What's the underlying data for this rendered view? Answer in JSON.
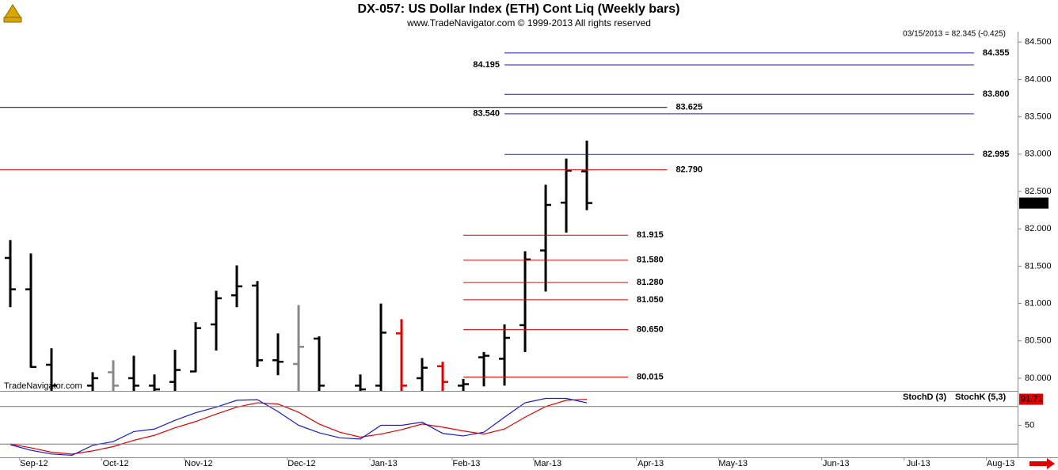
{
  "title": "DX-057:  US Dollar Index (ETH) Cont Liq  (Weekly bars)",
  "subtitle": "www.TradeNavigator.com © 1999-2013 All rights reserved",
  "last_quote": "03/15/2013 = 82.345 (-0.425)",
  "watermark": "TradeNavigator.com",
  "chart_data": [
    {
      "type": "ohlc",
      "x": [
        0,
        1,
        2,
        3,
        4,
        5,
        6,
        7,
        8,
        9,
        10,
        11,
        12,
        13,
        14,
        15,
        16,
        17,
        18,
        19,
        20,
        21,
        22,
        23,
        24,
        25,
        26,
        27,
        28
      ],
      "open": [
        81.61,
        81.19,
        80.18,
        null,
        79.9,
        80.08,
        80.0,
        79.9,
        79.95,
        80.09,
        80.72,
        81.11,
        81.24,
        80.24,
        80.19,
        80.53,
        null,
        79.9,
        79.9,
        80.6,
        80.0,
        80.16,
        79.9,
        80.28,
        80.26,
        80.71,
        81.71,
        82.35,
        82.77
      ],
      "high": [
        81.85,
        81.67,
        80.4,
        null,
        80.08,
        80.24,
        80.3,
        80.05,
        80.38,
        80.75,
        81.17,
        81.51,
        81.3,
        80.6,
        80.98,
        80.56,
        null,
        80.05,
        81.0,
        80.79,
        80.27,
        80.22,
        79.99,
        80.35,
        80.72,
        81.7,
        82.59,
        82.94,
        83.18
      ],
      "low": [
        80.95,
        80.14,
        79.75,
        null,
        79.7,
        79.7,
        79.7,
        79.7,
        79.8,
        80.08,
        80.37,
        80.95,
        80.15,
        80.04,
        79.7,
        79.7,
        null,
        79.7,
        79.7,
        79.7,
        79.8,
        79.7,
        79.7,
        79.89,
        79.9,
        80.35,
        81.16,
        81.95,
        82.25
      ],
      "close": [
        81.19,
        80.15,
        79.9,
        null,
        80.0,
        79.9,
        79.9,
        79.85,
        80.11,
        80.67,
        81.07,
        81.23,
        80.24,
        80.22,
        80.42,
        79.9,
        null,
        79.85,
        80.61,
        79.9,
        80.14,
        79.95,
        79.92,
        80.3,
        80.54,
        81.59,
        82.32,
        82.78,
        82.345
      ],
      "colors": [
        "#000",
        "#000",
        "#000",
        "#000",
        "#000",
        "#888",
        "#000",
        "#000",
        "#000",
        "#000",
        "#000",
        "#000",
        "#000",
        "#000",
        "#888",
        "#000",
        "#000",
        "#000",
        "#000",
        "#e00000",
        "#000",
        "#e00000",
        "#000",
        "#000",
        "#000",
        "#000",
        "#000",
        "#000",
        "#000"
      ],
      "xlim": [
        -0.5,
        48.92
      ],
      "ylim": [
        79.83,
        84.64
      ],
      "xticks": [
        {
          "value": 1.15,
          "label": "Sep-12"
        },
        {
          "value": 5.12,
          "label": "Oct-12"
        },
        {
          "value": 9.15,
          "label": "Nov-12"
        },
        {
          "value": 14.15,
          "label": "Dec-12"
        },
        {
          "value": 18.15,
          "label": "Jan-13"
        },
        {
          "value": 22.15,
          "label": "Feb-13"
        },
        {
          "value": 26.1,
          "label": "Mar-13"
        },
        {
          "value": 31.1,
          "label": "Apr-13"
        },
        {
          "value": 35.1,
          "label": "May-13"
        },
        {
          "value": 40.1,
          "label": "Jun-13"
        },
        {
          "value": 44.1,
          "label": "Jul-13"
        },
        {
          "value": 48.1,
          "label": "Aug-13"
        }
      ],
      "yticks": [
        {
          "value": 80,
          "label": "80.000"
        },
        {
          "value": 80.5,
          "label": "80.500"
        },
        {
          "value": 81,
          "label": "81.000"
        },
        {
          "value": 81.5,
          "label": "81.500"
        },
        {
          "value": 82,
          "label": "82.000"
        },
        {
          "value": 82.5,
          "label": "82.500"
        },
        {
          "value": 83,
          "label": "83.000"
        },
        {
          "value": 83.5,
          "label": "83.500"
        },
        {
          "value": 84,
          "label": "84.000"
        },
        {
          "value": 84.5,
          "label": "84.500"
        }
      ],
      "levels": [
        {
          "value": 83.625,
          "label": "83.625",
          "color": "#000000",
          "from": -0.5,
          "to": 31.9,
          "label_side": "right"
        },
        {
          "value": 82.79,
          "label": "82.790",
          "color": "#e00000",
          "from": -0.5,
          "to": 31.9,
          "label_side": "right"
        },
        {
          "value": 84.355,
          "label": "84.355",
          "color": "#1a1acc",
          "from": 24,
          "to": 46.8,
          "label_side": "right"
        },
        {
          "value": 84.195,
          "label": "84.195",
          "color": "#1a1acc",
          "from": 24,
          "to": 46.8,
          "label_side": "left"
        },
        {
          "value": 83.8,
          "label": "83.800",
          "color": "#1a1acc",
          "from": 24,
          "to": 46.8,
          "label_side": "right"
        },
        {
          "value": 83.54,
          "label": "83.540",
          "color": "#1a1acc",
          "from": 24,
          "to": 46.8,
          "label_side": "left"
        },
        {
          "value": 82.995,
          "label": "82.995",
          "color": "#1a1acc",
          "from": 24,
          "to": 46.8,
          "label_side": "right"
        },
        {
          "value": 81.915,
          "label": "81.915",
          "color": "#e00000",
          "from": 22,
          "to": 30,
          "label_side": "right"
        },
        {
          "value": 81.58,
          "label": "81.580",
          "color": "#e00000",
          "from": 22,
          "to": 30,
          "label_side": "right"
        },
        {
          "value": 81.28,
          "label": "81.280",
          "color": "#e00000",
          "from": 22,
          "to": 30,
          "label_side": "right"
        },
        {
          "value": 81.05,
          "label": "81.050",
          "color": "#e00000",
          "from": 22,
          "to": 30,
          "label_side": "right"
        },
        {
          "value": 80.65,
          "label": "80.650",
          "color": "#e00000",
          "from": 22,
          "to": 30,
          "label_side": "right"
        },
        {
          "value": 80.015,
          "label": "80.015",
          "color": "#e00000",
          "from": 22,
          "to": 30,
          "label_side": "right"
        }
      ]
    },
    {
      "type": "line",
      "x": [
        0,
        1,
        2,
        3,
        4,
        5,
        6,
        7,
        8,
        9,
        10,
        11,
        12,
        13,
        14,
        15,
        16,
        17,
        18,
        19,
        20,
        21,
        22,
        23,
        24,
        25,
        26,
        27,
        28
      ],
      "series": [
        {
          "name": "StochD (3)",
          "color": "#e00000",
          "values": [
            20,
            14,
            7,
            4,
            9,
            16,
            26,
            34,
            46,
            56,
            68,
            79,
            86,
            84,
            71,
            52,
            39,
            31,
            36,
            43,
            52,
            47,
            41,
            36,
            44,
            63,
            80,
            90,
            91.71
          ]
        },
        {
          "name": "StochK (5,3)",
          "color": "#1a1acc",
          "values": [
            19,
            10,
            4,
            2,
            18,
            24,
            40,
            44,
            58,
            70,
            79,
            90,
            91,
            72,
            50,
            38,
            30,
            28,
            50,
            50,
            55,
            37,
            33,
            39,
            63,
            86,
            93,
            93,
            86
          ]
        }
      ],
      "ylim": [
        0,
        100
      ],
      "yticks": [
        50
      ],
      "ref_lines": [
        80,
        20
      ]
    }
  ]
}
